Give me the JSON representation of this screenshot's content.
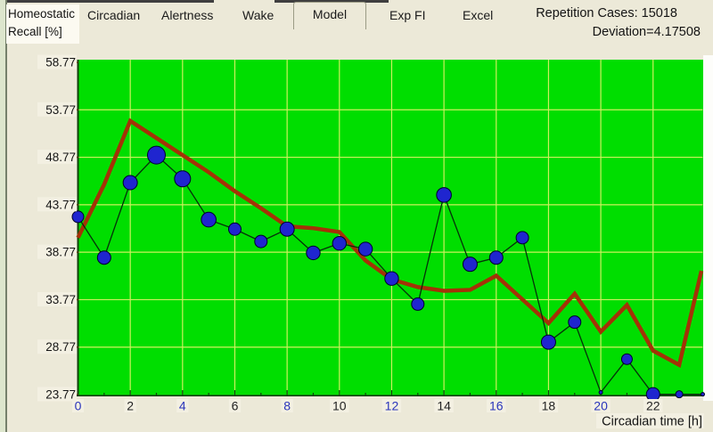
{
  "window": {
    "background": "#ece9d8",
    "left_edge_color": "#dde6cd"
  },
  "tabs": {
    "items": [
      {
        "label": "Circadian",
        "selected": false
      },
      {
        "label": "Alertness",
        "selected": false
      },
      {
        "label": "Wake",
        "selected": false
      },
      {
        "label": "Model",
        "selected": true
      },
      {
        "label": "Exp FI",
        "selected": false
      },
      {
        "label": "Excel",
        "selected": false
      }
    ]
  },
  "header": {
    "repetition_cases": "Repetition Cases: 15018",
    "deviation": "Deviation=4.17508"
  },
  "chart_data": {
    "type": "line",
    "title": "",
    "xlabel": "Circadian time [h]",
    "ylabel": "Homeostatic Recall [%]",
    "ylabel_lines": [
      "Homeostatic",
      "Recall [%]"
    ],
    "xlim": [
      0,
      24
    ],
    "ylim": [
      23.77,
      58.77
    ],
    "x_ticks": [
      0,
      2,
      4,
      6,
      8,
      10,
      12,
      14,
      16,
      18,
      20,
      22
    ],
    "x_tick_labels": [
      "0",
      "2",
      "4",
      "6",
      "8",
      "10",
      "12",
      "14",
      "16",
      "18",
      "20",
      "22"
    ],
    "y_ticks": [
      58.77,
      53.77,
      48.77,
      43.77,
      38.77,
      33.77,
      28.77,
      23.77
    ],
    "y_tick_labels": [
      "58.77",
      "53.77",
      "48.77",
      "43.77",
      "38.77",
      "33.77",
      "28.77",
      "23.77"
    ],
    "grid": true,
    "legend": "none",
    "plot_bg": "#00de00",
    "grid_color": "#cdf05e",
    "axis_color": "#123f0c",
    "y_tick_color": "#6b3c1e",
    "label_backdrop": "#f3f0e2",
    "x_label_blue": "#2a35bb",
    "x_label_dark": "#222222",
    "series": [
      {
        "name": "measured-recall-points",
        "color": "#1f25cf",
        "line_color": "#06300a",
        "marker": "circle",
        "x": [
          0,
          1,
          2,
          3,
          4,
          5,
          6,
          7,
          8,
          9,
          10,
          11,
          12,
          13,
          14,
          15,
          16,
          17,
          18,
          19,
          20,
          21,
          22,
          23,
          23.9
        ],
        "values": [
          42.5,
          38.2,
          46.1,
          49.0,
          46.5,
          42.2,
          41.2,
          39.9,
          41.2,
          38.7,
          39.7,
          39.1,
          36.0,
          33.3,
          44.8,
          37.5,
          38.2,
          40.3,
          29.3,
          31.4,
          24.0,
          27.5,
          23.8,
          23.8,
          23.8
        ],
        "marker_radius": [
          6.5,
          7.5,
          8,
          10,
          9,
          8.3,
          7,
          7,
          8,
          7.7,
          7.7,
          7.7,
          7.7,
          7,
          8.3,
          8,
          7.5,
          7,
          8,
          7,
          2,
          6,
          7.5,
          4,
          2
        ]
      },
      {
        "name": "model-curve",
        "color": "#a43207",
        "width": 4.5,
        "marker": "none",
        "x": [
          0,
          1,
          2,
          3,
          4,
          5,
          6,
          7,
          8,
          9,
          10,
          11,
          12,
          13,
          14,
          15,
          16,
          17,
          18,
          19,
          20,
          21,
          22,
          23,
          23.85
        ],
        "values": [
          40.3,
          45.9,
          52.6,
          50.8,
          49.0,
          47.2,
          45.2,
          43.4,
          41.5,
          41.3,
          40.9,
          37.9,
          35.9,
          35.1,
          34.7,
          34.8,
          36.3,
          33.8,
          31.3,
          34.4,
          30.4,
          33.2,
          28.4,
          26.9,
          36.8
        ]
      }
    ]
  }
}
